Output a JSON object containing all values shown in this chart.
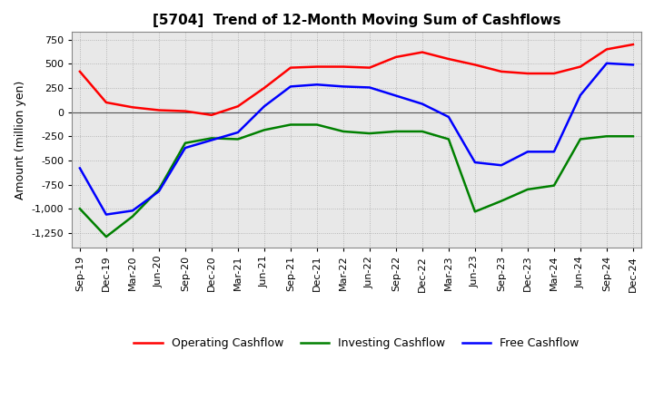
{
  "title": "[5704]  Trend of 12-Month Moving Sum of Cashflows",
  "ylabel": "Amount (million yen)",
  "legend": [
    "Operating Cashflow",
    "Investing Cashflow",
    "Free Cashflow"
  ],
  "colors": [
    "red",
    "green",
    "blue"
  ],
  "x_labels": [
    "Sep-19",
    "Dec-19",
    "Mar-20",
    "Jun-20",
    "Sep-20",
    "Dec-20",
    "Mar-21",
    "Jun-21",
    "Sep-21",
    "Dec-21",
    "Mar-22",
    "Jun-22",
    "Sep-22",
    "Dec-22",
    "Mar-23",
    "Jun-23",
    "Sep-23",
    "Dec-23",
    "Mar-24",
    "Jun-24",
    "Sep-24",
    "Dec-24"
  ],
  "operating": [
    420,
    100,
    50,
    20,
    10,
    -30,
    60,
    250,
    460,
    470,
    470,
    460,
    570,
    620,
    550,
    490,
    420,
    400,
    400,
    470,
    650,
    700
  ],
  "investing": [
    -1000,
    -1290,
    -1080,
    -800,
    -320,
    -270,
    -280,
    -185,
    -130,
    -130,
    -200,
    -220,
    -200,
    -200,
    -280,
    -1030,
    -920,
    -800,
    -760,
    -280,
    -250,
    -250
  ],
  "free": [
    -580,
    -1060,
    -1020,
    -820,
    -370,
    -290,
    -210,
    60,
    265,
    285,
    265,
    255,
    170,
    85,
    -50,
    -520,
    -550,
    -410,
    -410,
    175,
    505,
    490
  ],
  "ylim": [
    -1400,
    830
  ],
  "yticks": [
    750,
    500,
    250,
    0,
    -250,
    -500,
    -750,
    -1000,
    -1250
  ],
  "background_color": "#e8e8e8",
  "grid_color": "#aaaaaa",
  "title_fontsize": 11,
  "tick_fontsize": 8,
  "ylabel_fontsize": 9
}
